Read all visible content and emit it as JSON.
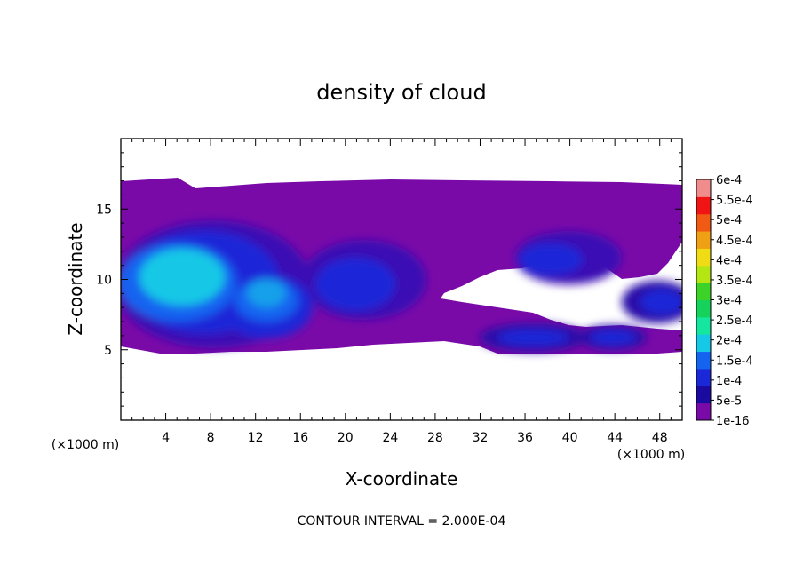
{
  "chart_data": {
    "type": "heatmap",
    "title": "density of cloud",
    "xlabel": "X-coordinate",
    "ylabel": "Z-coordinate",
    "x_unit_label": "(×1000 m)",
    "z_unit_label": "(×1000 m)",
    "xlim": [
      0,
      50
    ],
    "ylim": [
      0,
      20
    ],
    "x_ticks": [
      "4",
      "8",
      "12",
      "16",
      "20",
      "24",
      "28",
      "32",
      "36",
      "40",
      "44",
      "48"
    ],
    "y_ticks": [
      "5",
      "10",
      "15"
    ],
    "colorbar_labels": [
      "1e-16",
      "5e-5",
      "1e-4",
      "1.5e-4",
      "2e-4",
      "2.5e-4",
      "3e-4",
      "3.5e-4",
      "4e-4",
      "4.5e-4",
      "5e-4",
      "5.5e-4",
      "6e-4"
    ],
    "colorbar_colors": [
      "#7a0aa8",
      "#1a0aa0",
      "#1a28d8",
      "#1464f0",
      "#14c8e6",
      "#14e6a0",
      "#14d25a",
      "#3cd228",
      "#b4e614",
      "#f0dc14",
      "#f0a014",
      "#f05a14",
      "#f01414",
      "#f08c8c"
    ],
    "cloud_layer_z": [
      5,
      17
    ],
    "max_density_location": {
      "x": 6,
      "z": 10
    },
    "contour_interval_note": "CONTOUR INTERVAL = 2.000E-04"
  }
}
